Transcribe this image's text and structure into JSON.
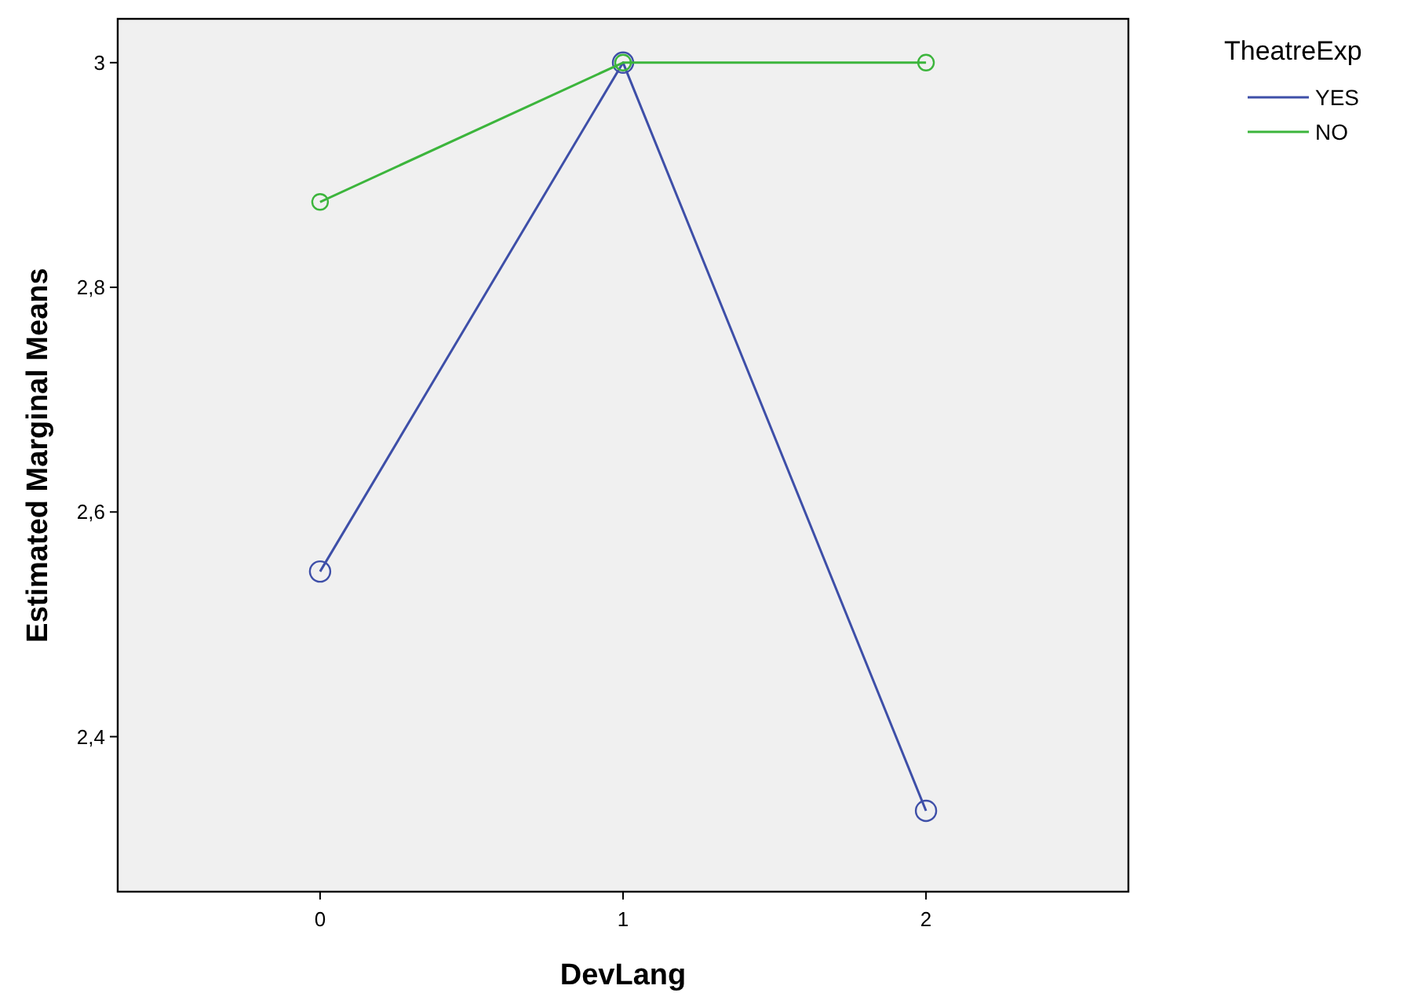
{
  "chart_data": {
    "type": "line",
    "xlabel": "DevLang",
    "ylabel": "Estimated Marginal Means",
    "legend_title": "TheatreExp",
    "categories": [
      "0",
      "1",
      "2"
    ],
    "series": [
      {
        "name": "YES",
        "color": "#3e4fa8",
        "values": [
          2.547,
          3.0,
          2.334
        ]
      },
      {
        "name": "NO",
        "color": "#3cb53c",
        "values": [
          2.876,
          3.0,
          3.0
        ]
      }
    ],
    "ylim": [
      2.262,
      3.039
    ],
    "yticks": [
      {
        "value": 2.4,
        "label": "2,4"
      },
      {
        "value": 2.6,
        "label": "2,6"
      },
      {
        "value": 2.8,
        "label": "2,8"
      },
      3
    ],
    "grid": false,
    "legend": "top right",
    "marker": "circle",
    "line_style": "solid"
  }
}
